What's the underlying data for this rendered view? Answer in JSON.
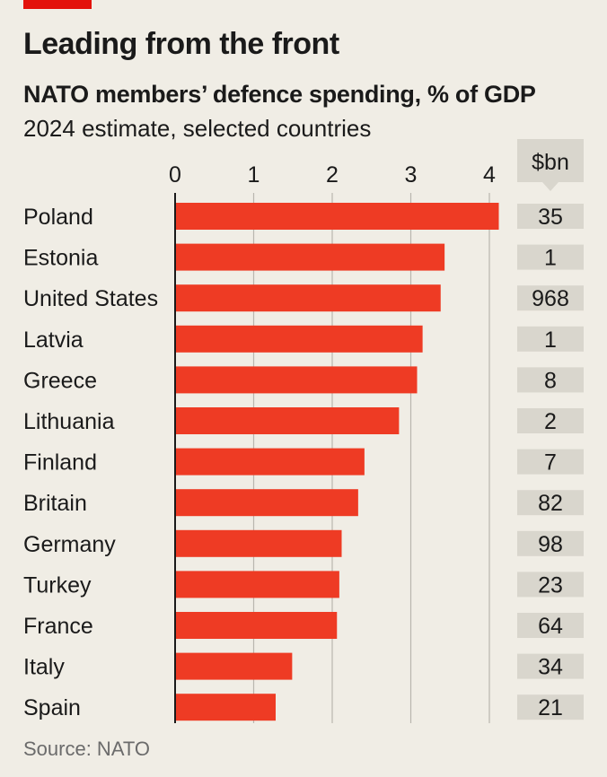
{
  "header": {
    "title": "Leading from the front",
    "subtitle": "NATO members’ defence spending, % of GDP",
    "note": "2024 estimate, selected countries"
  },
  "footer": {
    "source": "Source: NATO"
  },
  "colors": {
    "accent": "#e3120b",
    "bar": "#ee3b24",
    "value_box": "#d9d6cd",
    "gridline": "#b9b6ae",
    "axis": "#1a1a1a"
  },
  "chart_data": {
    "type": "bar",
    "orientation": "horizontal",
    "title": "Leading from the front",
    "subtitle": "NATO members’ defence spending, % of GDP",
    "categories": [
      "Poland",
      "Estonia",
      "United States",
      "Latvia",
      "Greece",
      "Lithuania",
      "Finland",
      "Britain",
      "Germany",
      "Turkey",
      "France",
      "Italy",
      "Spain"
    ],
    "series": [
      {
        "values": [
          4.12,
          3.43,
          3.38,
          3.15,
          3.08,
          2.85,
          2.41,
          2.33,
          2.12,
          2.09,
          2.06,
          1.49,
          1.28
        ]
      }
    ],
    "xlim": [
      0,
      4
    ],
    "xticks": [
      "0",
      "1",
      "2",
      "3",
      "4"
    ],
    "grid": true,
    "value_column": {
      "unit": "$bn",
      "values": [
        "35",
        "1",
        "968",
        "1",
        "8",
        "2",
        "7",
        "82",
        "98",
        "23",
        "64",
        "34",
        "21"
      ]
    }
  }
}
